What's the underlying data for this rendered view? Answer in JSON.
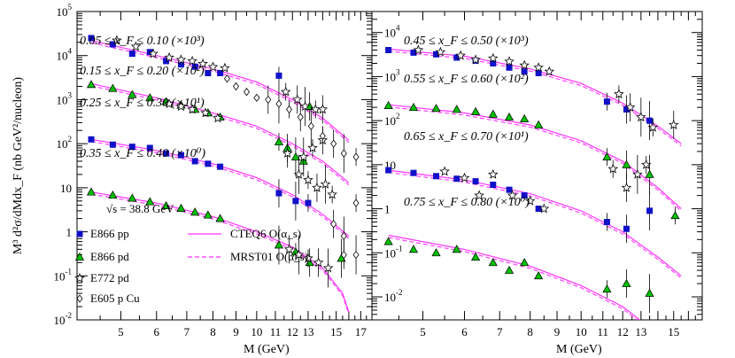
{
  "chart_data": [
    {
      "type": "scatter",
      "panel": "left",
      "xlabel": "M (GeV)",
      "ylabel": "M³ d²σ/dMdx_F (nb GeV²/nucleon)",
      "xscale": "log",
      "yscale": "log",
      "xlim": [
        4.0,
        18.0
      ],
      "ylim": [
        0.01,
        100000
      ],
      "x_ticks": [
        "5",
        "6",
        "7",
        "8",
        "9",
        "10",
        "11",
        "12",
        "13",
        "15",
        "17"
      ],
      "y_ticks": [
        {
          "base": "10",
          "exp": "5"
        },
        {
          "base": "10",
          "exp": "4"
        },
        {
          "base": "10",
          "exp": "3"
        },
        {
          "base": "10",
          "exp": "2"
        },
        {
          "base": "10",
          "exp": ""
        },
        {
          "base": "1",
          "exp": ""
        },
        {
          "base": "10",
          "exp": "-1"
        },
        {
          "base": "10",
          "exp": "-2"
        }
      ],
      "bin_labels": [
        {
          "text": "0.05 ≤ x_F ≤ 0.10 (×10³)",
          "ypos": 30000
        },
        {
          "text": "0.15 ≤ x_F ≤ 0.20 (×10²)",
          "ypos": 3400
        },
        {
          "text": "0.25 ≤ x_F ≤ 0.30 (×10¹)",
          "ypos": 330
        },
        {
          "text": "0.35 ≤ x_F ≤ 0.40 (×10⁰)",
          "ypos": 35
        }
      ],
      "sqrt_s_label": "√s = 38.8 GeV",
      "legend": [
        {
          "text": "E866 pp",
          "marker": "square"
        },
        {
          "text": "E866 pd",
          "marker": "triangle"
        },
        {
          "text": "E772 pd",
          "marker": "star"
        },
        {
          "text": "E605 p Cu",
          "marker": "diamond"
        },
        {
          "text": "CTEQ6 O(α_s)",
          "marker": "solid-line"
        },
        {
          "text": "MRST01 O(α_s)",
          "marker": "dashed-line"
        }
      ],
      "series": [
        {
          "name": "E866 pp",
          "marker": "square",
          "color": "#1010c8",
          "x": [
            4.3,
            4.8,
            5.3,
            5.8,
            6.3,
            6.8,
            7.3,
            7.8,
            8.3,
            11.2,
            4.3,
            4.8,
            5.3,
            5.8,
            6.3,
            6.8,
            7.3,
            7.8,
            8.3,
            11.2,
            12.2,
            13.0
          ],
          "y": [
            25000,
            18000,
            11000,
            12000,
            7500,
            6300,
            5600,
            4000,
            4000,
            3500,
            125,
            95,
            85,
            80,
            60,
            55,
            40,
            35,
            30,
            7.5,
            5,
            4.5
          ]
        },
        {
          "name": "E866 pd",
          "marker": "triangle",
          "color": "#00c000",
          "x": [
            4.3,
            4.8,
            5.3,
            5.8,
            6.3,
            6.8,
            7.3,
            7.8,
            8.3,
            11.2,
            11.7,
            12.2,
            12.7,
            13.1,
            4.3,
            4.8,
            5.3,
            5.8,
            6.3,
            6.8,
            7.3,
            7.8,
            8.3,
            11.2,
            12.2,
            13.1,
            15.4
          ],
          "y": [
            2200,
            1800,
            1300,
            1100,
            900,
            750,
            600,
            500,
            400,
            110,
            80,
            50,
            40,
            700,
            8,
            6.8,
            5.8,
            4.8,
            3.9,
            3.4,
            2.8,
            2.4,
            2.0,
            0.5,
            0.35,
            0.2,
            0.25
          ]
        },
        {
          "name": "E772 pd",
          "marker": "star",
          "color": "#000000",
          "x": [
            4.9,
            5.4,
            5.9,
            6.4,
            6.8,
            7.2,
            7.6,
            8.0,
            8.5,
            11.6,
            12.3,
            12.8,
            13.5,
            14.0,
            6.4,
            6.8,
            7.2,
            7.7,
            8.2,
            11.7,
            12.7,
            13.3,
            14.0,
            12.4,
            13.0,
            13.6,
            14.2,
            14.7,
            11.8,
            12.4,
            13.0,
            13.7,
            14.4
          ],
          "y": [
            22000,
            16000,
            11000,
            9000,
            8000,
            7500,
            6500,
            5500,
            5200,
            1500,
            1000,
            700,
            600,
            600,
            800,
            700,
            600,
            500,
            380,
            60,
            50,
            80,
            120,
            20,
            15,
            10,
            12,
            7,
            0.4,
            0.3,
            0.25,
            0.2,
            0.15
          ]
        },
        {
          "name": "E605 p Cu",
          "marker": "diamond",
          "color": "#000000",
          "x": [
            8.6,
            9.0,
            9.5,
            10.0,
            10.6,
            11.2,
            11.8,
            12.5,
            13.2,
            14.0,
            14.8,
            15.6,
            16.6,
            14.8,
            15.6,
            16.6,
            15.6,
            16.6
          ],
          "y": [
            3000,
            2000,
            1500,
            1100,
            1000,
            800,
            600,
            400,
            250,
            150,
            100,
            60,
            50,
            1.5,
            0.8,
            4.5,
            0.3,
            0.3
          ]
        }
      ],
      "curves": [
        {
          "name": "CTEQ6 O(α_s)",
          "style": "solid",
          "color": "#ff33ff",
          "x": [
            4.3,
            6.0,
            8.0,
            10.0,
            12.0,
            14.0,
            16.0
          ],
          "y": [
            22000,
            10000,
            5000,
            2500,
            1000,
            380,
            120
          ]
        },
        {
          "name": "CTEQ6 O(α_s)",
          "style": "solid",
          "color": "#ff33ff",
          "x": [
            4.3,
            6.0,
            8.0,
            10.0,
            12.0,
            14.0,
            16.0
          ],
          "y": [
            2300,
            1100,
            500,
            250,
            100,
            40,
            13
          ]
        },
        {
          "name": "CTEQ6 O(α_s)",
          "style": "solid",
          "color": "#ff33ff",
          "x": [
            4.3,
            6.0,
            8.0,
            10.0,
            12.0,
            14.0,
            16.0
          ],
          "y": [
            125,
            70,
            35,
            17,
            7,
            2.5,
            0.8
          ]
        },
        {
          "name": "CTEQ6 O(α_s)",
          "style": "solid",
          "color": "#ff33ff",
          "x": [
            4.3,
            6.0,
            8.0,
            10.0,
            12.0,
            14.0,
            15.5,
            16.0
          ],
          "y": [
            8,
            4.5,
            2.2,
            1.0,
            0.45,
            0.15,
            0.04,
            0.015
          ]
        }
      ]
    },
    {
      "type": "scatter",
      "panel": "right",
      "xlabel": "M (GeV)",
      "xscale": "log",
      "yscale": "log",
      "xlim": [
        4.0,
        17.0
      ],
      "ylim": [
        0.003,
        30000
      ],
      "x_ticks": [
        "5",
        "6",
        "7",
        "8",
        "9",
        "10",
        "11",
        "12",
        "13",
        "15"
      ],
      "y_ticks": [
        {
          "base": "10",
          "exp": "4"
        },
        {
          "base": "10",
          "exp": "3"
        },
        {
          "base": "10",
          "exp": "2"
        },
        {
          "base": "10",
          "exp": ""
        },
        {
          "base": "1",
          "exp": ""
        },
        {
          "base": "10",
          "exp": "-1"
        },
        {
          "base": "10",
          "exp": "-2"
        }
      ],
      "bin_labels": [
        {
          "text": "0.45 ≤ x_F ≤ 0.50 (×10³)",
          "ypos": 10000
        },
        {
          "text": "0.55 ≤ x_F ≤ 0.60 (×10²)",
          "ypos": 600
        },
        {
          "text": "0.65 ≤ x_F ≤ 0.70 (×10¹)",
          "ypos": 40
        },
        {
          "text": "0.75 ≤ x_F ≤ 0.80 (×10⁰)",
          "ypos": 0.5
        }
      ],
      "series": [
        {
          "name": "E866 pp",
          "marker": "square",
          "color": "#1010c8",
          "x": [
            4.3,
            4.8,
            5.3,
            5.8,
            6.3,
            6.8,
            7.3,
            7.8,
            8.3,
            11.2,
            12.2,
            13.5,
            4.3,
            4.8,
            5.3,
            5.8,
            6.3,
            6.8,
            7.3,
            7.8,
            8.3,
            11.2,
            12.2,
            13.5
          ],
          "y": [
            4000,
            3500,
            3200,
            2700,
            2300,
            2000,
            1600,
            1300,
            1200,
            270,
            180,
            100,
            7.5,
            6.5,
            5.5,
            4.8,
            4.2,
            3.5,
            2.7,
            2.0,
            1.0,
            0.5,
            0.35,
            0.9
          ]
        },
        {
          "name": "E866 pd",
          "marker": "triangle",
          "color": "#00c000",
          "x": [
            4.3,
            4.8,
            5.3,
            5.8,
            6.3,
            6.8,
            7.3,
            7.8,
            8.3,
            11.2,
            12.2,
            13.5,
            4.3,
            4.8,
            5.3,
            5.8,
            6.3,
            6.8,
            7.3,
            7.8,
            8.3,
            11.2,
            12.2,
            13.5,
            15.1
          ],
          "y": [
            220,
            200,
            190,
            180,
            160,
            140,
            120,
            110,
            80,
            15,
            10,
            6,
            0.18,
            0.12,
            0.1,
            0.12,
            0.08,
            0.06,
            0.04,
            0.06,
            0.03,
            0.015,
            0.02,
            0.012,
            0.7
          ]
        },
        {
          "name": "E772 pd",
          "marker": "star",
          "color": "#000000",
          "x": [
            4.9,
            5.4,
            5.9,
            6.3,
            6.8,
            7.3,
            7.8,
            8.3,
            8.7,
            11.8,
            12.4,
            13.0,
            13.7,
            15.0,
            5.5,
            6.0,
            6.4,
            6.8,
            7.4,
            8.0,
            8.5,
            11.5,
            12.2,
            12.8,
            13.3
          ],
          "y": [
            4000,
            3600,
            3000,
            2400,
            2600,
            2200,
            1800,
            1600,
            1300,
            400,
            200,
            120,
            70,
            80,
            7,
            5,
            2,
            6,
            2,
            1.5,
            1,
            8,
            3,
            6,
            10
          ]
        }
      ],
      "curves": [
        {
          "name": "CTEQ6 O(α_s)",
          "style": "solid",
          "color": "#ff33ff",
          "x": [
            4.3,
            6.0,
            8.0,
            10.0,
            12.0,
            14.0,
            15.5
          ],
          "y": [
            4200,
            2900,
            1500,
            700,
            250,
            75,
            30
          ]
        },
        {
          "name": "CTEQ6 O(α_s)",
          "style": "solid",
          "color": "#ff33ff",
          "x": [
            4.3,
            6.0,
            8.0,
            10.0,
            12.0,
            14.0,
            15.5
          ],
          "y": [
            230,
            150,
            80,
            35,
            12,
            3,
            1
          ]
        },
        {
          "name": "CTEQ6 O(α_s)",
          "style": "solid",
          "color": "#ff33ff",
          "x": [
            4.3,
            6.0,
            8.0,
            10.0,
            12.0,
            14.0,
            15.5
          ],
          "y": [
            7.5,
            4.5,
            2.2,
            0.9,
            0.3,
            0.08,
            0.03
          ]
        },
        {
          "name": "CTEQ6 O(α_s)",
          "style": "solid",
          "color": "#ff33ff",
          "x": [
            4.3,
            6.0,
            8.0,
            10.0,
            12.0,
            13.5
          ],
          "y": [
            0.25,
            0.12,
            0.05,
            0.018,
            0.006,
            0.002
          ]
        }
      ]
    }
  ]
}
